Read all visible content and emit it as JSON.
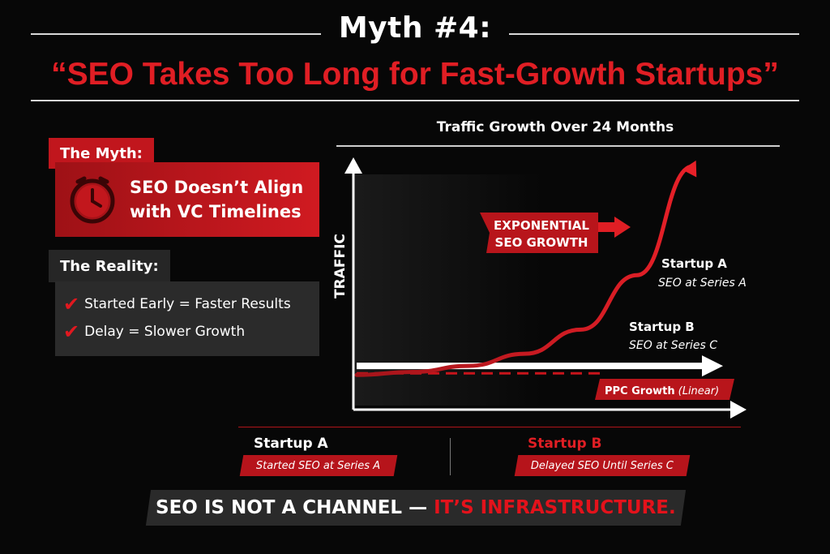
{
  "header": {
    "title": "Myth #4:",
    "subtitle": "“SEO Takes Too Long for Fast-Growth Startups”"
  },
  "myth": {
    "label": "The Myth:",
    "line1": "SEO Doesn’t Align",
    "line2": "with VC Timelines",
    "icon": "clock-icon"
  },
  "reality": {
    "label": "The Reality:",
    "point1": "Started Early = Faster Results",
    "point2": "Delay = Slower Growth",
    "icon": "checkmark-icon"
  },
  "chart_data": {
    "type": "line",
    "title": "Traffic Growth Over 24 Months",
    "ylabel": "TRAFFIC",
    "xlabel": "",
    "x": [
      0,
      4,
      8,
      12,
      16,
      20,
      24
    ],
    "series": [
      {
        "name": "Startup A",
        "sublabel": "SEO at Series A",
        "style": "red-exponential-arrow",
        "values": [
          1,
          2,
          4,
          8,
          16,
          34,
          70
        ]
      },
      {
        "name": "Startup B",
        "sublabel": "SEO at Series C",
        "style": "white-flat-arrow",
        "values": [
          4,
          4,
          4,
          4,
          4,
          4,
          4
        ]
      },
      {
        "name": "PPC Growth",
        "qualifier": "(Linear)",
        "style": "red-dashed",
        "values": [
          1,
          1,
          1,
          1,
          1,
          1,
          1
        ]
      }
    ],
    "annotation": {
      "line1": "EXPONENTIAL",
      "line2": "SEO GROWTH"
    },
    "colors": {
      "accent": "#e01e24",
      "background": "#070707",
      "axis": "#ffffff"
    }
  },
  "footer": {
    "a_name": "Startup A",
    "a_tag": "Started SEO at Series A",
    "b_name": "Startup B",
    "b_tag": "Delayed SEO Until Series C",
    "banner_white": "SEO IS NOT A CHANNEL — ",
    "banner_red": "IT’S INFRASTRUCTURE."
  }
}
